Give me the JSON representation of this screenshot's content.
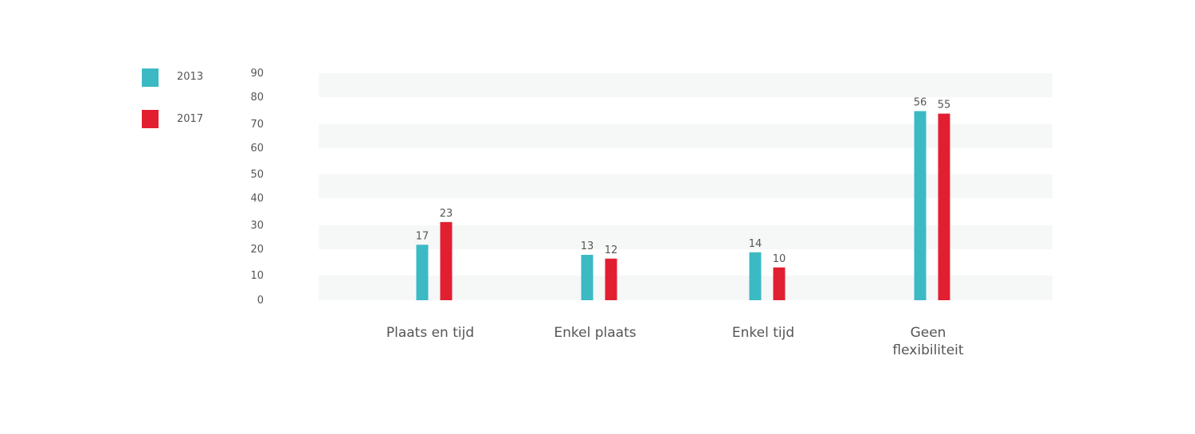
{
  "chart_data": {
    "type": "bar",
    "categories": [
      [
        "Plaats en tijd"
      ],
      [
        "Enkel  plaats"
      ],
      [
        "Enkel tijd"
      ],
      [
        "Geen",
        "flexibiliteit"
      ]
    ],
    "series": [
      {
        "name": "2013",
        "color": "#3bbac4",
        "values": [
          17,
          13,
          14,
          56
        ],
        "bar_heights": [
          22,
          18,
          19,
          75
        ]
      },
      {
        "name": "2017",
        "color": "#e21f30",
        "values": [
          23,
          12,
          10,
          55
        ],
        "bar_heights": [
          31,
          16.5,
          13,
          74
        ]
      }
    ],
    "yticks": [
      0,
      10,
      20,
      30,
      40,
      50,
      60,
      70,
      80,
      90
    ],
    "ylim": [
      0,
      90
    ],
    "title": "",
    "xlabel": "",
    "ylabel": "",
    "legend_position": "top-left",
    "grid_band_color": "#f6f7f7"
  }
}
